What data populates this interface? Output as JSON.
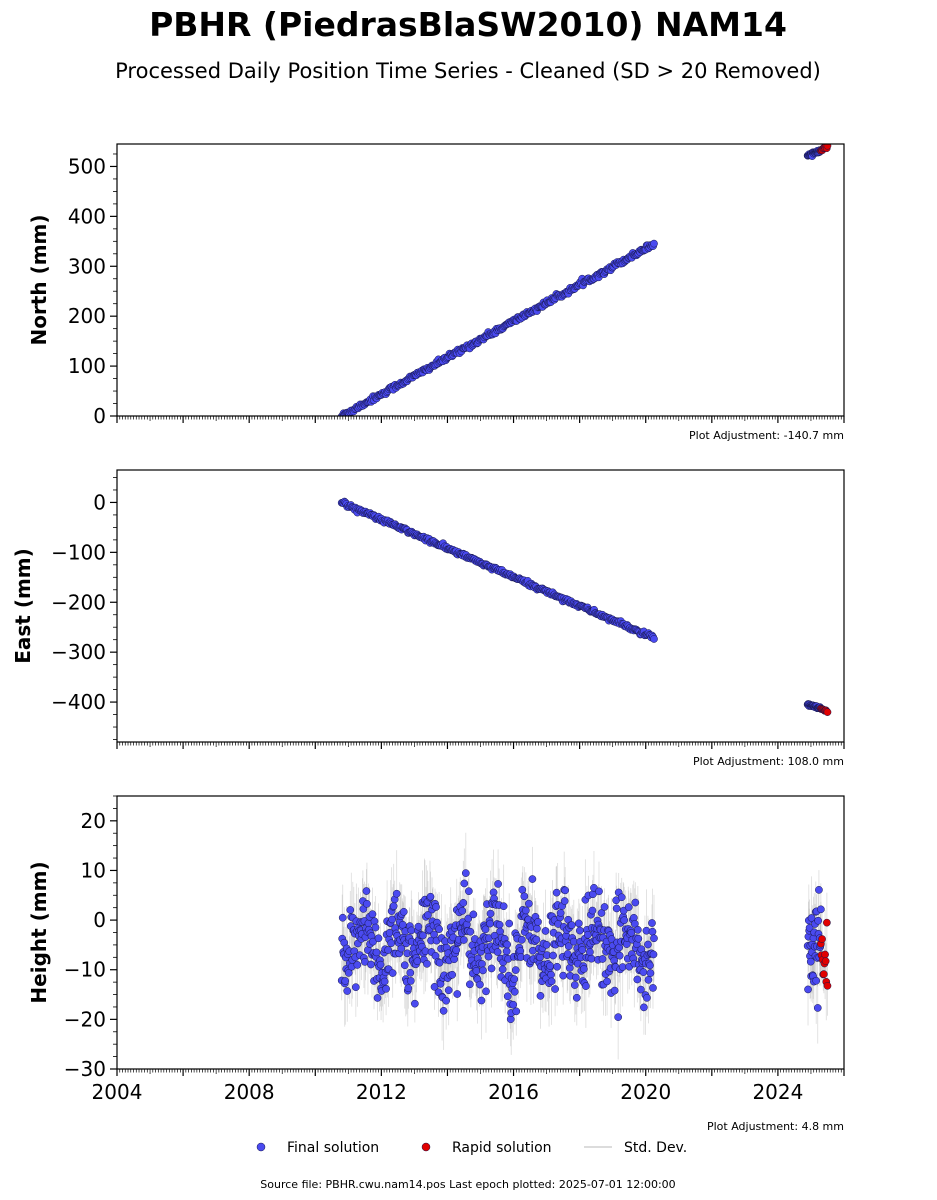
{
  "header": {
    "title": "PBHR (PiedrasBlaSW2010) NAM14",
    "subtitle": "Processed Daily Position Time Series - Cleaned (SD > 20 Removed)"
  },
  "footer": {
    "source": "Source file: PBHR.cwu.nam14.pos  Last epoch plotted: 2025-07-01 12:00:00"
  },
  "legend": {
    "final": "Final solution",
    "rapid": "Rapid solution",
    "std": "Std. Dev."
  },
  "colors": {
    "final_fill": "#4a4af0",
    "final_edge": "#16164a",
    "rapid_fill": "#e00000",
    "std_line": "#9a9a9a"
  },
  "chart_data": [
    {
      "type": "scatter",
      "ylabel": "North (mm)",
      "adjustment": "Plot Adjustment: -140.7 mm",
      "xlim": [
        2004,
        2026
      ],
      "ylim": [
        0,
        545
      ],
      "yticks": [
        0,
        100,
        200,
        300,
        400,
        500
      ],
      "yticklabels": [
        "0",
        "100",
        "200",
        "300",
        "400",
        "500"
      ],
      "show_xticklabels": false,
      "series": [
        {
          "kind": "final",
          "segments": [
            {
              "x": [
                2010.8,
                2020.25
              ],
              "y": [
                0,
                345
              ],
              "n": 340,
              "noise": 2.5
            },
            {
              "x": [
                2024.9,
                2025.3
              ],
              "y": [
                522,
                533
              ],
              "n": 30,
              "noise": 1.5
            }
          ]
        },
        {
          "kind": "rapid",
          "segments": [
            {
              "x": [
                2025.3,
                2025.5
              ],
              "y": [
                533,
                540
              ],
              "n": 10,
              "noise": 1.2
            }
          ]
        }
      ]
    },
    {
      "type": "scatter",
      "ylabel": "East (mm)",
      "adjustment": "Plot Adjustment: 108.0 mm",
      "xlim": [
        2004,
        2026
      ],
      "ylim": [
        -480,
        65
      ],
      "yticks": [
        -400,
        -300,
        -200,
        -100,
        0
      ],
      "yticklabels": [
        "−400",
        "−300",
        "−200",
        "−100",
        "0"
      ],
      "show_xticklabels": false,
      "series": [
        {
          "kind": "final",
          "segments": [
            {
              "x": [
                2010.8,
                2020.25
              ],
              "y": [
                0,
                -272
              ],
              "n": 340,
              "noise": 2.0
            },
            {
              "x": [
                2024.9,
                2025.3
              ],
              "y": [
                -405,
                -413
              ],
              "n": 30,
              "noise": 1.2
            }
          ]
        },
        {
          "kind": "rapid",
          "segments": [
            {
              "x": [
                2025.3,
                2025.5
              ],
              "y": [
                -413,
                -420
              ],
              "n": 10,
              "noise": 1.0
            }
          ]
        }
      ]
    },
    {
      "type": "scatter",
      "ylabel": "Height (mm)",
      "adjustment": "Plot Adjustment: 4.8 mm",
      "xlim": [
        2004,
        2026
      ],
      "ylim": [
        -30,
        25
      ],
      "yticks": [
        -30,
        -20,
        -10,
        0,
        10,
        20
      ],
      "yticklabels": [
        "−30",
        "−20",
        "−10",
        "0",
        "10",
        "20"
      ],
      "show_xticklabels": true,
      "xticks": [
        2004,
        2008,
        2012,
        2016,
        2020,
        2024
      ],
      "xticklabels": [
        "2004",
        "2008",
        "2012",
        "2016",
        "2020",
        "2024"
      ],
      "series": [
        {
          "kind": "final",
          "segments": [
            {
              "x": [
                2010.8,
                2020.25
              ],
              "y": [
                -5,
                -5
              ],
              "n": 620,
              "noise": 4.5,
              "seasonal": 5
            },
            {
              "x": [
                2024.9,
                2025.3
              ],
              "y": [
                -5,
                -5
              ],
              "n": 35,
              "noise": 4.5,
              "seasonal": 0
            }
          ]
        },
        {
          "kind": "rapid",
          "segments": [
            {
              "x": [
                2025.3,
                2025.5
              ],
              "y": [
                -8,
                -8
              ],
              "n": 12,
              "noise": 3,
              "seasonal": 0
            }
          ]
        }
      ]
    }
  ]
}
